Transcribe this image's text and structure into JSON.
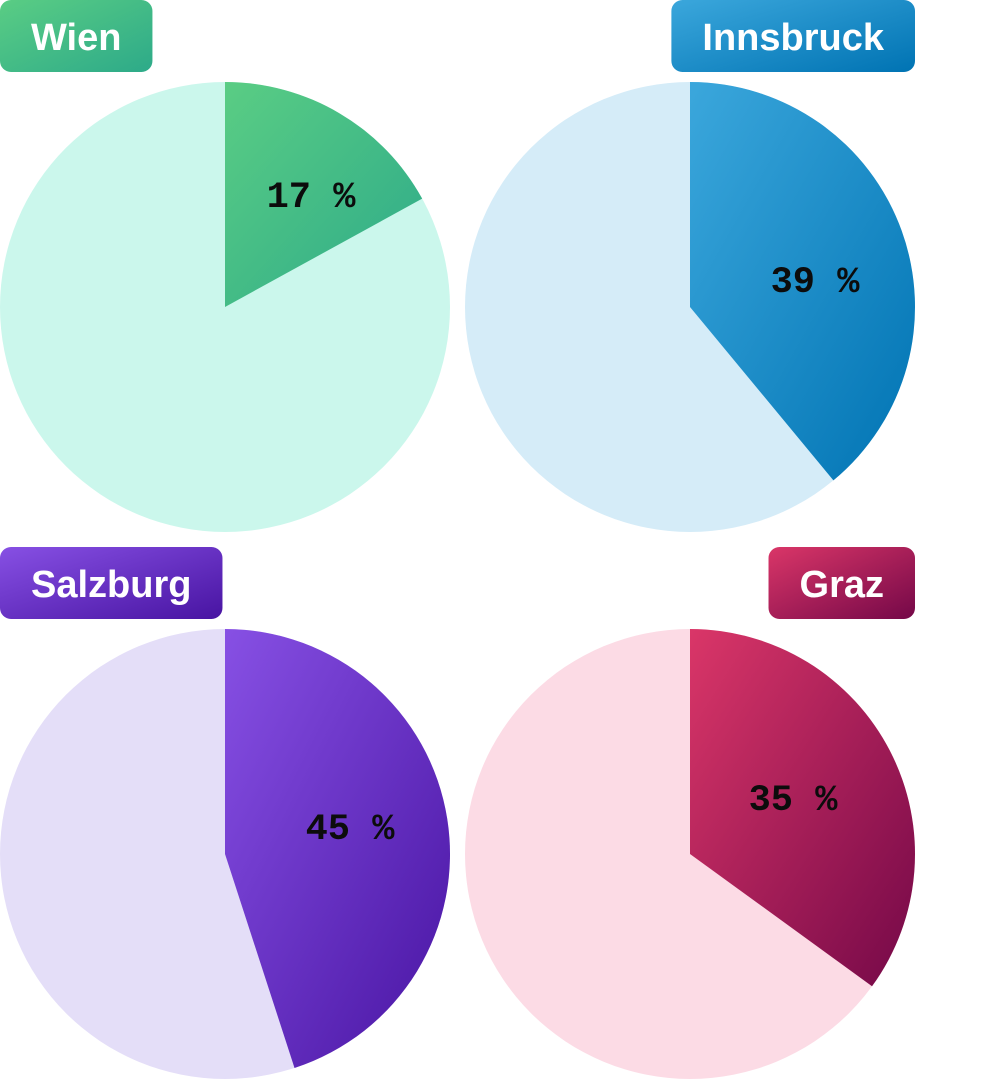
{
  "chart_data": [
    {
      "type": "pie",
      "title": "Wien",
      "value_label": "17 %",
      "values": [
        17,
        83
      ],
      "colors": {
        "slice_start": "#5acd84",
        "slice_end": "#2daa89",
        "rest": "#cbf7ec"
      }
    },
    {
      "type": "pie",
      "title": "Innsbruck",
      "value_label": "39 %",
      "values": [
        39,
        61
      ],
      "colors": {
        "slice_start": "#3ba7dc",
        "slice_end": "#0073b3",
        "rest": "#d5ecf8"
      }
    },
    {
      "type": "pie",
      "title": "Salzburg",
      "value_label": "45 %",
      "values": [
        45,
        55
      ],
      "colors": {
        "slice_start": "#8750e4",
        "slice_end": "#4814a2",
        "rest": "#e4def8"
      }
    },
    {
      "type": "pie",
      "title": "Graz",
      "value_label": "35 %",
      "values": [
        35,
        65
      ],
      "colors": {
        "slice_start": "#da3668",
        "slice_end": "#740848",
        "rest": "#fcdbe5"
      }
    }
  ]
}
